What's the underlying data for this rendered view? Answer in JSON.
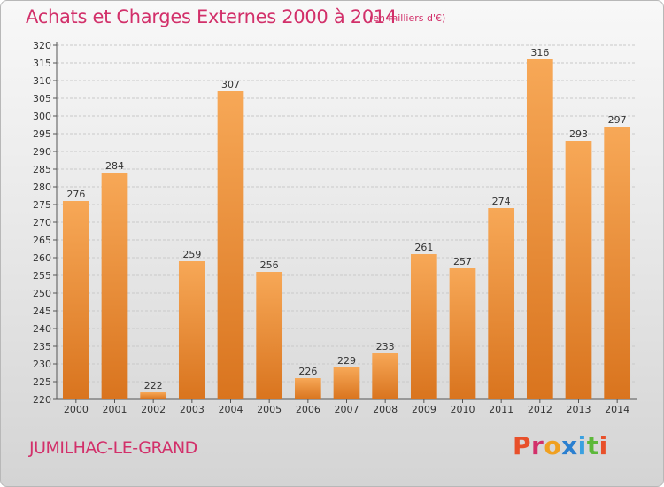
{
  "header": {
    "title": "Achats et Charges Externes 2000 à 2014",
    "subtitle": "(en milliers d'€)"
  },
  "footer": {
    "commune": "JUMILHAC-LE-GRAND",
    "logo": "Proxiti"
  },
  "colors": {
    "bar_light": "#f7a857",
    "bar_dark": "#d9741e",
    "title": "#d2306a",
    "logo_letters": [
      "#e8502a",
      "#d2306a",
      "#f0a020",
      "#2a7fd0",
      "#3aa0e0",
      "#5cb83a",
      "#e8502a"
    ]
  },
  "chart_data": {
    "type": "bar",
    "title": "Achats et Charges Externes 2000 à 2014",
    "subtitle": "(en milliers d'€)",
    "categories": [
      "2000",
      "2001",
      "2002",
      "2003",
      "2004",
      "2005",
      "2006",
      "2007",
      "2008",
      "2009",
      "2010",
      "2011",
      "2012",
      "2013",
      "2014"
    ],
    "values": [
      276,
      284,
      222,
      259,
      307,
      256,
      226,
      229,
      233,
      261,
      257,
      274,
      316,
      293,
      297
    ],
    "ylim": [
      220,
      320
    ],
    "ytick_step": 5,
    "grid": true,
    "legend": "none"
  }
}
